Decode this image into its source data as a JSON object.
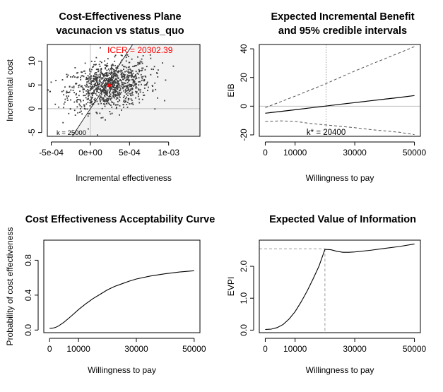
{
  "chart_data": [
    {
      "type": "scatter",
      "title": [
        "Cost-Effectiveness Plane",
        "vacunacion vs status_quo"
      ],
      "xlabel": "Incremental effectiveness",
      "ylabel": "Incremental cost",
      "xlim": [
        -0.00055,
        0.0014
      ],
      "ylim": [
        -5.8,
        13.5
      ],
      "xticks": [
        -0.0005,
        0,
        0.0005,
        0.001
      ],
      "xtick_labels": [
        "-5e-04",
        "0e+00",
        "5e-04",
        "1e-03"
      ],
      "yticks": [
        -5,
        0,
        5,
        10
      ],
      "ytick_labels": [
        "-5",
        "0",
        "5",
        "10"
      ],
      "acceptability_threshold_k": 25000,
      "k_label": "k = 25000",
      "icer": 20302.39,
      "icer_label": "ICER = 20302.39",
      "mean_point": [
        0.00024,
        4.9
      ],
      "shaded_region": "below k line",
      "point_cloud": {
        "n": 1000,
        "mean_x": 0.00024,
        "sd_x": 0.00026,
        "mean_y": 4.9,
        "sd_y": 2.5
      },
      "colors": {
        "points": "#3a3a3a",
        "icer": "#ff0000",
        "shade": "#f2f2f2",
        "ref_lines": "#bebebe"
      }
    },
    {
      "type": "line",
      "title": [
        "Expected Incremental Benefit",
        "and 95% credible intervals"
      ],
      "xlabel": "Willingness to pay",
      "ylabel": "EIB",
      "xlim": [
        -2000,
        52000
      ],
      "ylim": [
        -21,
        43
      ],
      "xticks": [
        0,
        10000,
        30000,
        50000
      ],
      "xtick_labels": [
        "0",
        "10000",
        "30000",
        "50000"
      ],
      "yticks": [
        -20,
        0,
        20,
        40
      ],
      "ytick_labels": [
        "-20",
        "0",
        "20",
        "40"
      ],
      "x": [
        0,
        5000,
        10000,
        15000,
        20000,
        25000,
        30000,
        35000,
        40000,
        45000,
        50000
      ],
      "series": [
        {
          "name": "",
          "style": "solid",
          "values": [
            -4.9,
            -3.7,
            -2.5,
            -1.2,
            0.0,
            1.3,
            2.5,
            3.7,
            4.9,
            6.1,
            7.4
          ]
        },
        {
          "name": "",
          "style": "dashed",
          "values": [
            -1.0,
            3.0,
            7.0,
            11.2,
            15.4,
            20.0,
            24.5,
            28.8,
            33.0,
            37.2,
            41.5
          ]
        },
        {
          "name": "",
          "style": "dashed",
          "values": [
            -10.7,
            -10.2,
            -10.6,
            -12.0,
            -13.0,
            -14.0,
            -15.0,
            -16.2,
            -17.2,
            -18.2,
            -19.8
          ]
        }
      ],
      "k_star": 20400,
      "k_star_label": "k* = 20400"
    },
    {
      "type": "line",
      "title": "Cost Effectiveness Acceptability Curve",
      "xlabel": "Willingness to pay",
      "ylabel": "Probability of cost effectiveness",
      "xlim": [
        -2000,
        52000
      ],
      "ylim": [
        -0.03,
        1.03
      ],
      "xticks": [
        0,
        10000,
        30000,
        50000
      ],
      "xtick_labels": [
        "0",
        "10000",
        "30000",
        "50000"
      ],
      "yticks": [
        0,
        0.4,
        0.8
      ],
      "ytick_labels": [
        "0.0",
        "0.4",
        "0.8"
      ],
      "x": [
        0,
        1000,
        2000,
        3000,
        5000,
        7500,
        10000,
        12500,
        15000,
        17500,
        20000,
        22500,
        25000,
        27500,
        30000,
        35000,
        40000,
        45000,
        50000
      ],
      "values": [
        0.02,
        0.022,
        0.03,
        0.045,
        0.09,
        0.16,
        0.235,
        0.3,
        0.36,
        0.41,
        0.46,
        0.5,
        0.53,
        0.56,
        0.585,
        0.62,
        0.645,
        0.665,
        0.68
      ]
    },
    {
      "type": "line",
      "title": "Expected Value of Information",
      "xlabel": "Willingness to pay",
      "ylabel": "EVPI",
      "xlim": [
        -2000,
        52000
      ],
      "ylim": [
        -0.08,
        2.82
      ],
      "xticks": [
        0,
        10000,
        30000,
        50000
      ],
      "xtick_labels": [
        "0",
        "10000",
        "30000",
        "50000"
      ],
      "yticks": [
        0,
        1,
        2
      ],
      "ytick_labels": [
        "0.0",
        "1.0",
        "2.0"
      ],
      "x": [
        0,
        2000,
        4000,
        6000,
        8000,
        10000,
        12000,
        14000,
        16000,
        18000,
        20000,
        22000,
        24000,
        26000,
        28000,
        30000,
        35000,
        40000,
        45000,
        50000
      ],
      "values": [
        0.02,
        0.03,
        0.08,
        0.18,
        0.35,
        0.58,
        0.88,
        1.22,
        1.6,
        2.0,
        2.53,
        2.52,
        2.47,
        2.44,
        2.44,
        2.45,
        2.5,
        2.56,
        2.62,
        2.7
      ],
      "peak": {
        "x": 20000,
        "y": 2.55
      }
    }
  ]
}
